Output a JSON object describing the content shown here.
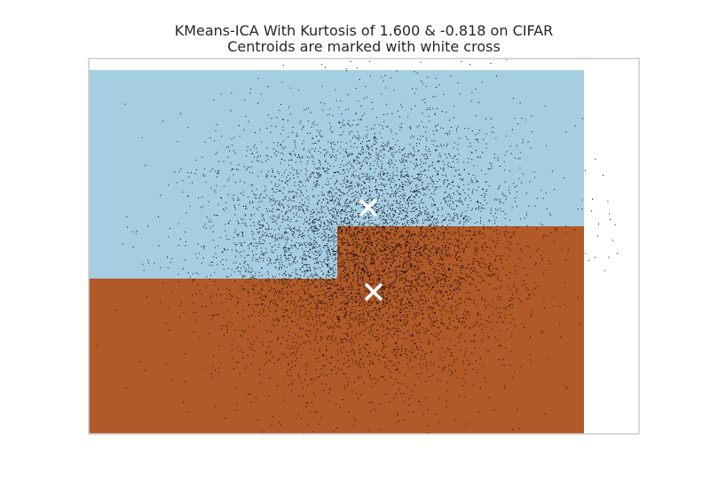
{
  "chart_data": {
    "type": "scatter",
    "title": "KMeans-ICA With Kurtosis of 1.600 & -0.818 on CIFAR",
    "subtitle": "Centroids are marked with white cross",
    "xlabel": "",
    "ylabel": "",
    "xlim": [
      -2.75,
      3.45
    ],
    "ylim": [
      -1.75,
      2.48
    ],
    "grid": false,
    "legend": "none",
    "decision_regions": [
      {
        "cluster": 0,
        "color": "#a6cee3",
        "description": "upper region"
      },
      {
        "cluster": 1,
        "color": "#b15928",
        "description": "lower region"
      }
    ],
    "decision_region_extent": {
      "x": [
        -2.75,
        2.83
      ],
      "y": [
        -1.75,
        2.35
      ]
    },
    "region_boundary": [
      {
        "x_from": -2.75,
        "x_to": 0.05,
        "y": 0.0
      },
      {
        "x_from": 0.05,
        "x_to": 2.83,
        "y": 0.59
      }
    ],
    "centroids": [
      {
        "x": 0.4,
        "y": 0.8,
        "label": "Centroid 1"
      },
      {
        "x": 0.46,
        "y": -0.15,
        "label": "Centroid 2"
      }
    ],
    "scatter": {
      "name": "samples",
      "color": "#000000",
      "approx_count": 7000,
      "center": {
        "x": 0.4,
        "y": 0.35
      },
      "spread": {
        "x": 0.85,
        "y": 0.75
      }
    }
  }
}
